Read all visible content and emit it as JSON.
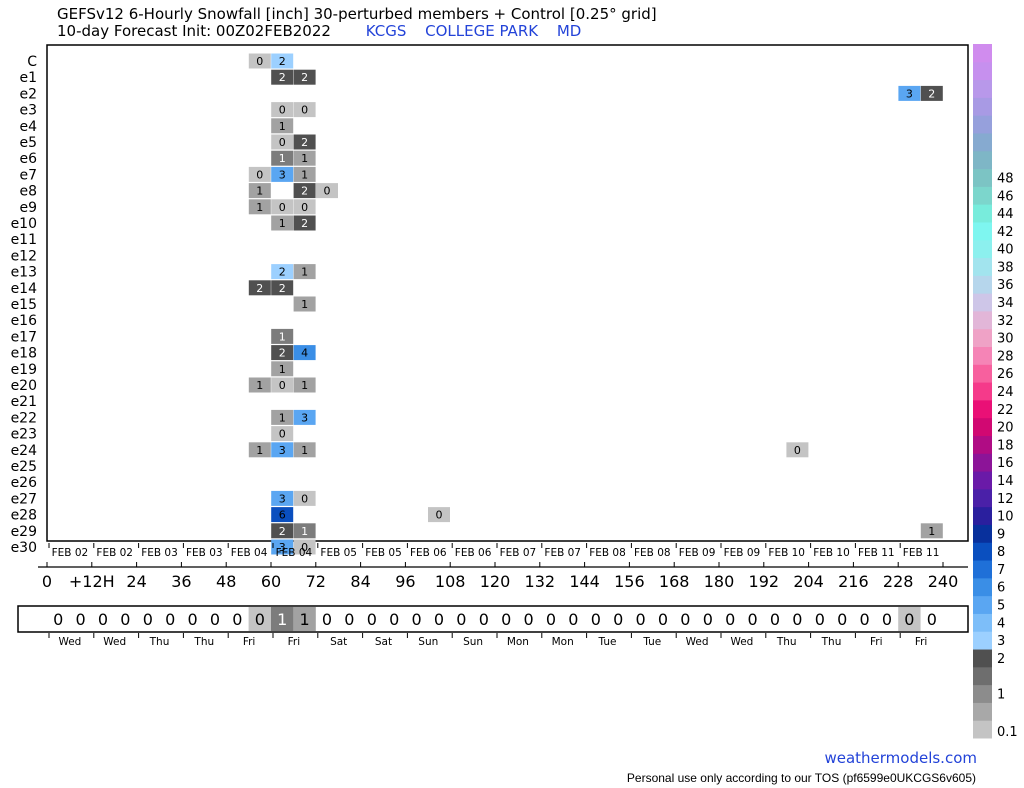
{
  "title": {
    "line1": "GEFSv12 6-Hourly Snowfall [inch]  30-perturbed members + Control [0.25° grid]",
    "line2": "10-day Forecast Init: 00Z02FEB2022",
    "station_id": "KCGS",
    "station_name": "COLLEGE PARK",
    "state": "MD"
  },
  "footer": {
    "brand": "weathermodels.com",
    "tos": "Personal use only according to our TOS (pf6599e0UKCGS6v605)"
  },
  "chart_data": {
    "type": "heatmap",
    "members": [
      "C",
      "e1",
      "e2",
      "e3",
      "e4",
      "e5",
      "e6",
      "e7",
      "e8",
      "e9",
      "e10",
      "e11",
      "e12",
      "e13",
      "e14",
      "e15",
      "e16",
      "e17",
      "e18",
      "e19",
      "e20",
      "e21",
      "e22",
      "e23",
      "e24",
      "e25",
      "e26",
      "e27",
      "e28",
      "e29",
      "e30"
    ],
    "hours_first": 6,
    "hours_step": 6,
    "hours_count": 40,
    "x_tick_hours": [
      0,
      12,
      24,
      36,
      48,
      60,
      72,
      84,
      96,
      108,
      120,
      132,
      144,
      156,
      168,
      180,
      192,
      204,
      216,
      228,
      240
    ],
    "x_tick_labels": [
      "0",
      "+12H",
      "24",
      "36",
      "48",
      "60",
      "72",
      "84",
      "96",
      "108",
      "120",
      "132",
      "144",
      "156",
      "168",
      "180",
      "192",
      "204",
      "216",
      "228",
      "240"
    ],
    "date_labels": [
      "FEB 02",
      "FEB 02",
      "FEB 03",
      "FEB 03",
      "FEB 04",
      "FEB 04",
      "FEB 05",
      "FEB 05",
      "FEB 06",
      "FEB 06",
      "FEB 07",
      "FEB 07",
      "FEB 08",
      "FEB 08",
      "FEB 09",
      "FEB 09",
      "FEB 10",
      "FEB 10",
      "FEB 11",
      "FEB 11"
    ],
    "cells": [
      {
        "member": "C",
        "hour": 60,
        "label": "0",
        "value": 0.1
      },
      {
        "member": "C",
        "hour": 66,
        "label": "2",
        "value": 2.5
      },
      {
        "member": "e1",
        "hour": 66,
        "label": "2",
        "value": 2
      },
      {
        "member": "e1",
        "hour": 72,
        "label": "2",
        "value": 2
      },
      {
        "member": "e2",
        "hour": 234,
        "label": "3",
        "value": 3
      },
      {
        "member": "e2",
        "hour": 240,
        "label": "2",
        "value": 2
      },
      {
        "member": "e3",
        "hour": 66,
        "label": "0",
        "value": 0.1
      },
      {
        "member": "e3",
        "hour": 72,
        "label": "0",
        "value": 0.1
      },
      {
        "member": "e4",
        "hour": 66,
        "label": "1",
        "value": 1
      },
      {
        "member": "e5",
        "hour": 66,
        "label": "0",
        "value": 0.1
      },
      {
        "member": "e5",
        "hour": 72,
        "label": "2",
        "value": 2
      },
      {
        "member": "e6",
        "hour": 66,
        "label": "1",
        "value": 1.5
      },
      {
        "member": "e6",
        "hour": 72,
        "label": "1",
        "value": 1
      },
      {
        "member": "e7",
        "hour": 60,
        "label": "0",
        "value": 0.1
      },
      {
        "member": "e7",
        "hour": 66,
        "label": "3",
        "value": 3
      },
      {
        "member": "e7",
        "hour": 72,
        "label": "1",
        "value": 0.5
      },
      {
        "member": "e8",
        "hour": 60,
        "label": "1",
        "value": 1
      },
      {
        "member": "e8",
        "hour": 72,
        "label": "2",
        "value": 2
      },
      {
        "member": "e8",
        "hour": 78,
        "label": "0",
        "value": 0.1
      },
      {
        "member": "e9",
        "hour": 60,
        "label": "1",
        "value": 1
      },
      {
        "member": "e9",
        "hour": 66,
        "label": "0",
        "value": 0.1
      },
      {
        "member": "e9",
        "hour": 72,
        "label": "0",
        "value": 0.1
      },
      {
        "member": "e10",
        "hour": 66,
        "label": "1",
        "value": 1
      },
      {
        "member": "e10",
        "hour": 72,
        "label": "2",
        "value": 2
      },
      {
        "member": "e13",
        "hour": 66,
        "label": "2",
        "value": 2.5
      },
      {
        "member": "e13",
        "hour": 72,
        "label": "1",
        "value": 1
      },
      {
        "member": "e14",
        "hour": 60,
        "label": "2",
        "value": 2
      },
      {
        "member": "e14",
        "hour": 66,
        "label": "2",
        "value": 2
      },
      {
        "member": "e15",
        "hour": 72,
        "label": "1",
        "value": 1
      },
      {
        "member": "e17",
        "hour": 66,
        "label": "1",
        "value": 1.5
      },
      {
        "member": "e18",
        "hour": 66,
        "label": "2",
        "value": 2
      },
      {
        "member": "e18",
        "hour": 72,
        "label": "4",
        "value": 4
      },
      {
        "member": "e19",
        "hour": 66,
        "label": "1",
        "value": 1
      },
      {
        "member": "e20",
        "hour": 60,
        "label": "1",
        "value": 1
      },
      {
        "member": "e20",
        "hour": 66,
        "label": "0",
        "value": 0.1
      },
      {
        "member": "e20",
        "hour": 72,
        "label": "1",
        "value": 1
      },
      {
        "member": "e22",
        "hour": 66,
        "label": "1",
        "value": 1
      },
      {
        "member": "e22",
        "hour": 72,
        "label": "3",
        "value": 3
      },
      {
        "member": "e23",
        "hour": 66,
        "label": "0",
        "value": 0.1
      },
      {
        "member": "e24",
        "hour": 60,
        "label": "1",
        "value": 1
      },
      {
        "member": "e24",
        "hour": 66,
        "label": "3",
        "value": 3
      },
      {
        "member": "e24",
        "hour": 72,
        "label": "1",
        "value": 1
      },
      {
        "member": "e24",
        "hour": 204,
        "label": "0",
        "value": 0.1
      },
      {
        "member": "e27",
        "hour": 66,
        "label": "3",
        "value": 3
      },
      {
        "member": "e27",
        "hour": 72,
        "label": "0",
        "value": 0.1
      },
      {
        "member": "e28",
        "hour": 66,
        "label": "6",
        "value": 6
      },
      {
        "member": "e28",
        "hour": 108,
        "label": "0",
        "value": 0.1
      },
      {
        "member": "e29",
        "hour": 66,
        "label": "2",
        "value": 2
      },
      {
        "member": "e29",
        "hour": 72,
        "label": "1",
        "value": 1.5
      },
      {
        "member": "e29",
        "hour": 240,
        "label": "1",
        "value": 1
      },
      {
        "member": "e30",
        "hour": 66,
        "label": "3",
        "value": 3
      },
      {
        "member": "e30",
        "hour": 72,
        "label": "0",
        "value": 0.1
      }
    ],
    "mean_row": {
      "labels": [
        "0",
        "0",
        "0",
        "0",
        "0",
        "0",
        "0",
        "0",
        "0",
        "0",
        "1",
        "1",
        "0",
        "0",
        "0",
        "0",
        "0",
        "0",
        "0",
        "0",
        "0",
        "0",
        "0",
        "0",
        "0",
        "0",
        "0",
        "0",
        "0",
        "0",
        "0",
        "0",
        "0",
        "0",
        "0",
        "0",
        "0",
        "0",
        "0",
        "0"
      ],
      "shaded": [
        {
          "hour": 60,
          "value": 0.1
        },
        {
          "hour": 66,
          "value": 1.5
        },
        {
          "hour": 72,
          "value": 0.5
        },
        {
          "hour": 234,
          "value": 0.1
        }
      ]
    },
    "day_labels": [
      "Wed",
      "Wed",
      "Thu",
      "Thu",
      "Fri",
      "Fri",
      "Sat",
      "Sat",
      "Sun",
      "Sun",
      "Mon",
      "Mon",
      "Tue",
      "Tue",
      "Wed",
      "Wed",
      "Thu",
      "Thu",
      "Fri",
      "Fri"
    ],
    "colorbar": {
      "labels": [
        "0.1",
        "1",
        "2",
        "3",
        "4",
        "5",
        "6",
        "7",
        "8",
        "9",
        "10",
        "12",
        "14",
        "16",
        "18",
        "20",
        "22",
        "24",
        "26",
        "28",
        "30",
        "32",
        "34",
        "36",
        "38",
        "40",
        "42",
        "44",
        "46",
        "48"
      ],
      "colors": [
        "#c4c4c4",
        "#a8a8a8",
        "#8c8c8c",
        "#6e6e6e",
        "#505050",
        "#9cd0ff",
        "#7dbef9",
        "#5aa6f2",
        "#3a8ee6",
        "#1f70d8",
        "#0a4fbf",
        "#08309c",
        "#2a1f9e",
        "#4a20a8",
        "#6a1aa8",
        "#8c1498",
        "#b00c84",
        "#d10872",
        "#ea1076",
        "#f53a8a",
        "#f7609e",
        "#f584b6",
        "#efa2c6",
        "#e2b6d8",
        "#cec6e8",
        "#b6d6ec",
        "#a2e4ee",
        "#8cf0ee",
        "#7ef6f0",
        "#78ecdc",
        "#7cd6cc",
        "#7cc4c4",
        "#7eb6c6",
        "#86aad0",
        "#96a0dc",
        "#a89ae4",
        "#b898ea",
        "#c690ee",
        "#d08cee"
      ],
      "tick_at": [
        1,
        3,
        5,
        6,
        7,
        8,
        9,
        10,
        11,
        12,
        13,
        14,
        15,
        16,
        17,
        18,
        19,
        20,
        21,
        22,
        23,
        24,
        25,
        26,
        27,
        28,
        29,
        30,
        31,
        32
      ]
    }
  }
}
